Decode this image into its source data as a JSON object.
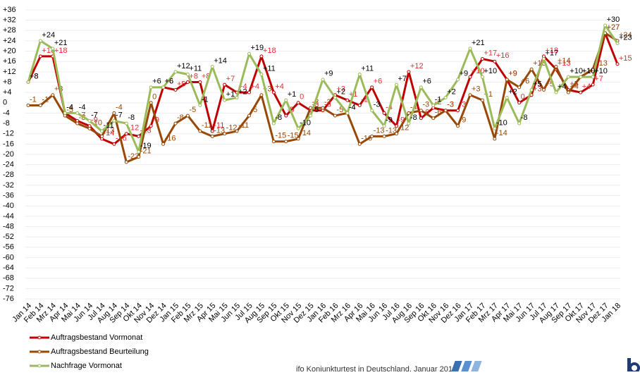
{
  "chart_data": {
    "type": "line",
    "categories": [
      "Jan 14",
      "Feb 14",
      "Mrz 14",
      "Apr 14",
      "Mai 14",
      "Jun 14",
      "Jul 14",
      "Aug 14",
      "Sep 14",
      "Okt 14",
      "Nov 14",
      "Dez 14",
      "Jan 15",
      "Feb 15",
      "Mrz 15",
      "Apr 15",
      "Mai 15",
      "Jun 15",
      "Jul 15",
      "Aug 15",
      "Sep 15",
      "Okt 15",
      "Nov 15",
      "Dez 15",
      "Jan 16",
      "Feb 16",
      "Mrz 16",
      "Apr 16",
      "Mai 16",
      "Jun 16",
      "Jul 16",
      "Aug 16",
      "Sep 16",
      "Okt 16",
      "Nov 16",
      "Dez 16",
      "Jan 17",
      "Feb 17",
      "Mrz 17",
      "Apr 17",
      "Mai 17",
      "Jun 17",
      "Jul 17",
      "Aug 17",
      "Sep 17",
      "Okt 17",
      "Nov 17",
      "Dez 17",
      "Jan 18"
    ],
    "series": [
      {
        "name": "Auftragsbestand Vormonat",
        "color": "#c00000",
        "label_color": "#e03030",
        "values": [
          8,
          18,
          18,
          -4,
          -7,
          -9,
          -14,
          -16,
          -12,
          -13,
          -9,
          6,
          5,
          8,
          8,
          -11,
          7,
          4,
          4,
          18,
          4,
          -5,
          0,
          -3,
          -3,
          3,
          1,
          -1,
          6,
          -4,
          -9,
          12,
          -6,
          -2,
          -3,
          -3,
          10,
          17,
          16,
          9,
          0,
          3,
          18,
          13,
          5,
          4,
          7,
          27,
          15
        ],
        "value_labels": [
          "+8",
          "+18",
          "+18",
          "-4",
          "-7",
          "-9",
          "-14",
          "-16",
          "-12",
          "-13",
          "-9",
          "+6",
          "+5",
          "+8",
          "+8",
          "-11",
          "+7",
          "+4",
          "+4",
          "+18",
          "+4",
          "-5",
          "0",
          "-3",
          "-3",
          "+3",
          "+1",
          "-1",
          "+6",
          "-4",
          "-9",
          "+12",
          "-6",
          "-2",
          "-3",
          "-3",
          "+10",
          "+17",
          "+16",
          "+9",
          "0",
          "+3",
          "+18",
          "+13",
          "+5",
          "+4",
          "+7",
          "+27",
          "+15"
        ]
      },
      {
        "name": "Auftragsbestand Beurteilung",
        "color": "#984807",
        "label_color": "#984807",
        "values": [
          -1,
          -1,
          3,
          -5,
          -8,
          -10,
          -13,
          -4,
          -23,
          -21,
          0,
          -16,
          -8,
          -5,
          -11,
          -13,
          -12,
          -11,
          -5,
          3,
          -15,
          -15,
          -14,
          -2,
          -2,
          -5,
          -4,
          -16,
          -13,
          -13,
          -12,
          -4,
          -3,
          -6,
          -3,
          -9,
          3,
          1,
          -14,
          9,
          6,
          13,
          5,
          14,
          4,
          10,
          13,
          27,
          24
        ],
        "value_labels": [
          "-1",
          "-1",
          "+3",
          "-5",
          "-8",
          "-10",
          "-13",
          "-4",
          "-23",
          "-21",
          "0",
          "-16",
          "-8",
          "-5",
          "-11",
          "-13",
          "-12",
          "-11",
          "-5",
          "+3",
          "-15",
          "-15",
          "-14",
          "-2",
          "-2",
          "-5",
          "-4",
          "-16",
          "-13",
          "-13",
          "-12",
          "-4",
          "-3",
          "-6",
          "-3",
          "-9",
          "+3",
          "+1",
          "-14",
          "+9",
          "+6",
          "+13",
          "+5",
          "+14",
          "+4",
          "+10",
          "+13",
          "+27",
          "+24"
        ]
      },
      {
        "name": "Nachfrage Vormonat",
        "color": "#9bbb59",
        "label_color": "#000000",
        "values": [
          8,
          24,
          21,
          -4,
          -4,
          -7,
          -11,
          -7,
          -8,
          -19,
          6,
          6,
          12,
          11,
          -1,
          14,
          1,
          2,
          19,
          11,
          -8,
          1,
          -10,
          -5,
          9,
          2,
          -4,
          11,
          -3,
          -9,
          7,
          -8,
          6,
          -1,
          2,
          9,
          21,
          10,
          -10,
          2,
          -8,
          5,
          17,
          4,
          10,
          10,
          10,
          30,
          23
        ],
        "value_labels": [
          "+8",
          "+24",
          "+21",
          "-4",
          "-4",
          "-7",
          "-11",
          "-7",
          "-8",
          "-19",
          "+6",
          "+6",
          "+12",
          "+11",
          "-1",
          "+14",
          "+1",
          "+2",
          "+19",
          "+11",
          "-8",
          "+1",
          "-10",
          "-5",
          "+9",
          "+2",
          "-4",
          "+11",
          "-3",
          "-9",
          "+7",
          "-8",
          "+6",
          "-1",
          "+2",
          "+9",
          "+21",
          "+10",
          "-10",
          "+2",
          "-8",
          "+5",
          "+17",
          "+4",
          "+10",
          "+10",
          "+10",
          "+30",
          "+23"
        ]
      }
    ],
    "ylim": [
      -76,
      36
    ],
    "yticks": [
      {
        "value": 36,
        "label": "+36"
      },
      {
        "value": 32,
        "label": "+32"
      },
      {
        "value": 28,
        "label": "+28"
      },
      {
        "value": 24,
        "label": "+24"
      },
      {
        "value": 20,
        "label": "+20"
      },
      {
        "value": 16,
        "label": "+16"
      },
      {
        "value": 12,
        "label": "+12"
      },
      {
        "value": 8,
        "label": "+8"
      },
      {
        "value": 4,
        "label": "+4"
      },
      0,
      -4,
      -8,
      -12,
      -16,
      -20,
      -24,
      -28,
      -32,
      -36,
      -40,
      -44,
      -48,
      -52,
      -56,
      -60,
      -64,
      -68,
      -72,
      -76
    ],
    "grid": true,
    "source": "ifo Konjunkturtest in Deutschland, Januar 2018"
  }
}
